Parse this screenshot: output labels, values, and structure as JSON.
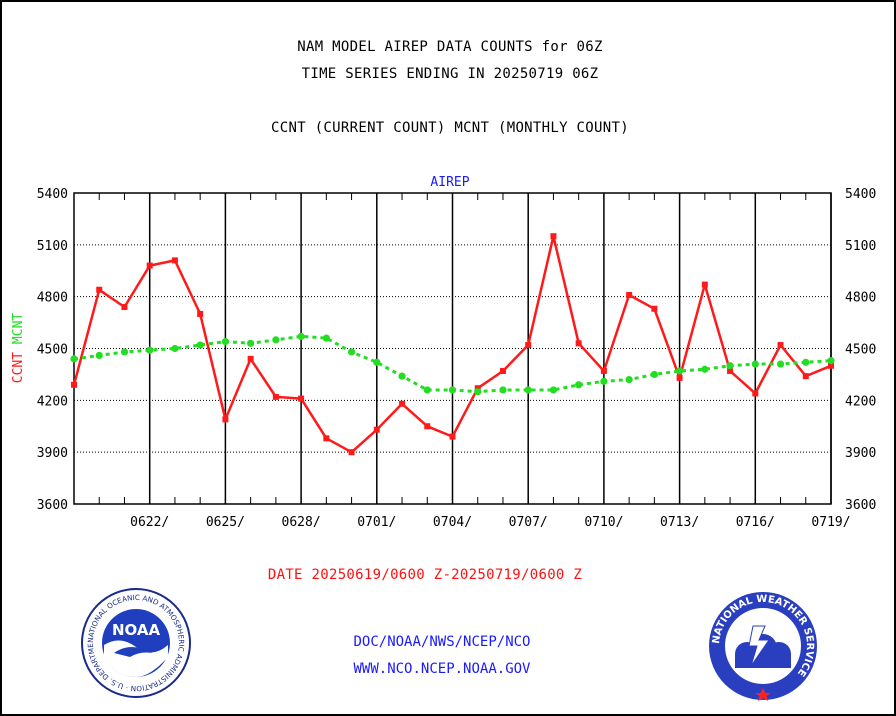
{
  "header": {
    "title_line1": "NAM MODEL AIREP DATA COUNTS for 06Z",
    "title_line2": "TIME SERIES ENDING IN 20250719 06Z",
    "subtitle": "CCNT (CURRENT COUNT) MCNT (MONTHLY COUNT)"
  },
  "chart_data": {
    "type": "line",
    "title": "AIREP",
    "ylabel_left_ccnt": "CCNT",
    "ylabel_left_mcnt": "MCNT",
    "ylim": [
      3600,
      5400
    ],
    "yticks": [
      3600,
      3900,
      4200,
      4500,
      4800,
      5100,
      5400
    ],
    "x_start_date": "20250619",
    "xtick_labels": [
      "0622/",
      "0625/",
      "0628/",
      "0701/",
      "0704/",
      "0707/",
      "0710/",
      "0713/",
      "0716/",
      "0719/"
    ],
    "xlabel": "DATE 20250619/0600 Z-20250719/0600 Z",
    "grid": true,
    "series": [
      {
        "name": "CCNT",
        "color": "#ff1a1a",
        "values": [
          4290,
          4840,
          4740,
          4980,
          5010,
          4700,
          4090,
          4440,
          4220,
          4210,
          3980,
          3900,
          4030,
          4180,
          4050,
          3990,
          4270,
          4370,
          4520,
          5150,
          4530,
          4370,
          4810,
          4730,
          4330,
          4870,
          4370,
          4240,
          4520,
          4340,
          4400
        ]
      },
      {
        "name": "MCNT",
        "color": "#22dd22",
        "values": [
          4440,
          4460,
          4480,
          4490,
          4500,
          4520,
          4540,
          4530,
          4550,
          4570,
          4560,
          4480,
          4420,
          4340,
          4260,
          4260,
          4250,
          4260,
          4260,
          4260,
          4290,
          4310,
          4320,
          4350,
          4370,
          4380,
          4400,
          4410,
          4410,
          4420,
          4430
        ]
      }
    ]
  },
  "footer": {
    "credit_line1": "DOC/NOAA/NWS/NCEP/NCO",
    "credit_line2": "WWW.NCO.NCEP.NOAA.GOV",
    "noaa_logo_text": "NOAA",
    "noaa_ring_text": "NATIONAL OCEANIC AND ATMOSPHERIC ADMINISTRATION · U.S. DEPARTMENT OF COMMERCE ·",
    "nws_ring_text": "NATIONAL WEATHER SERVICE"
  }
}
